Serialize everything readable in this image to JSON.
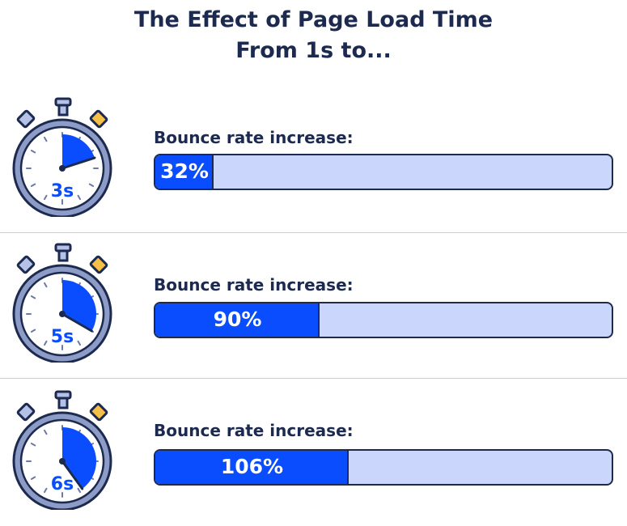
{
  "title_line1": "The Effect of Page Load Time",
  "title_line2": "From 1s to...",
  "colors": {
    "navy": "#1c2a4f",
    "bar_fill": "#0a4dff",
    "bar_track": "#cad6fb",
    "clock_face": "#c9d5f6",
    "clock_rim": "#6b7aa6",
    "accent_orange": "#f5c04a"
  },
  "chart_data": {
    "type": "bar",
    "title": "The Effect of Page Load Time From 1s to...",
    "orientation": "horizontal",
    "categories": [
      "3s",
      "5s",
      "6s"
    ],
    "category_label": "Bounce rate increase:",
    "values": [
      32,
      90,
      106
    ],
    "value_labels": [
      "32%",
      "90%",
      "106%"
    ],
    "xlim": [
      0,
      250
    ],
    "grid": false,
    "legend": "none"
  },
  "rows": [
    {
      "time": "3s",
      "label": "Bounce rate increase:",
      "value_text": "32%"
    },
    {
      "time": "5s",
      "label": "Bounce rate increase:",
      "value_text": "90%"
    },
    {
      "time": "6s",
      "label": "Bounce rate increase:",
      "value_text": "106%"
    }
  ],
  "icons": [
    "stopwatch-icon"
  ]
}
